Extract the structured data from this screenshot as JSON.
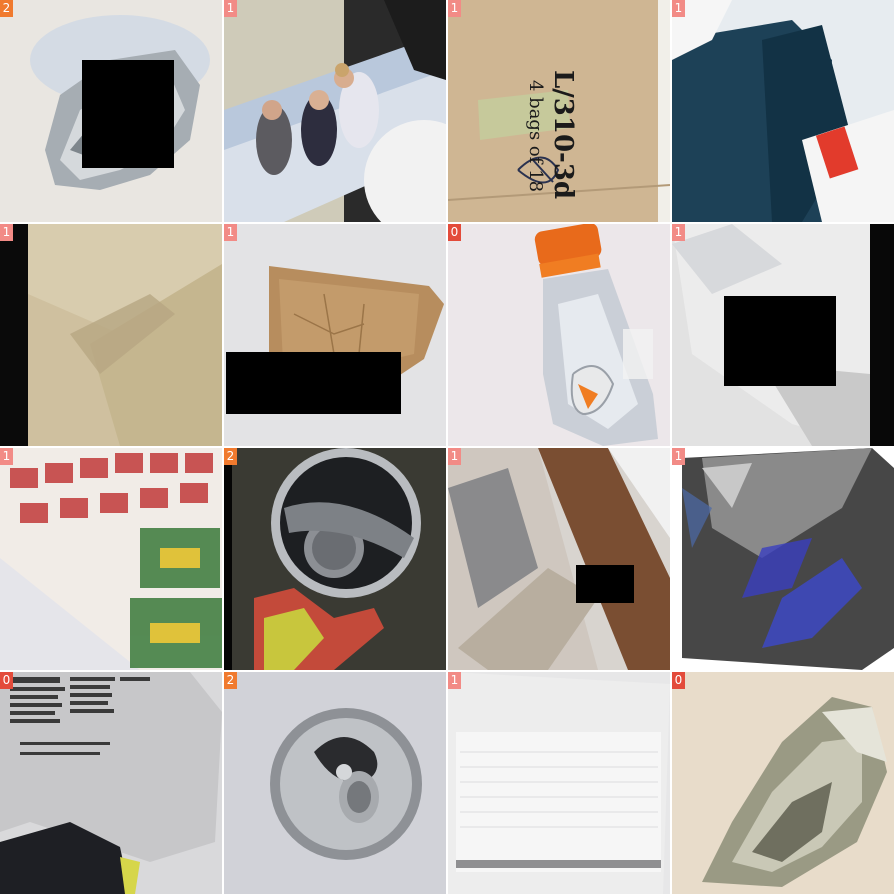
{
  "tiles": [
    {
      "label": "2",
      "badge_color": "#f07a2e"
    },
    {
      "label": "1",
      "badge_color": "#f28b86"
    },
    {
      "label": "1",
      "badge_color": "#f28b86"
    },
    {
      "label": "1",
      "badge_color": "#f28b86"
    },
    {
      "label": "1",
      "badge_color": "#f28b86"
    },
    {
      "label": "1",
      "badge_color": "#f28b86"
    },
    {
      "label": "0",
      "badge_color": "#e34b3a"
    },
    {
      "label": "1",
      "badge_color": "#f28b86"
    },
    {
      "label": "1",
      "badge_color": "#f28b86"
    },
    {
      "label": "2",
      "badge_color": "#f07a2e"
    },
    {
      "label": "1",
      "badge_color": "#f28b86"
    },
    {
      "label": "1",
      "badge_color": "#f28b86"
    },
    {
      "label": "0",
      "badge_color": "#e34b3a"
    },
    {
      "label": "2",
      "badge_color": "#f07a2e"
    },
    {
      "label": "1",
      "badge_color": "#f28b86"
    },
    {
      "label": "0",
      "badge_color": "#e34b3a"
    }
  ],
  "box_text": {
    "code": "L/310-3d",
    "pack": "4 bags of 18"
  }
}
